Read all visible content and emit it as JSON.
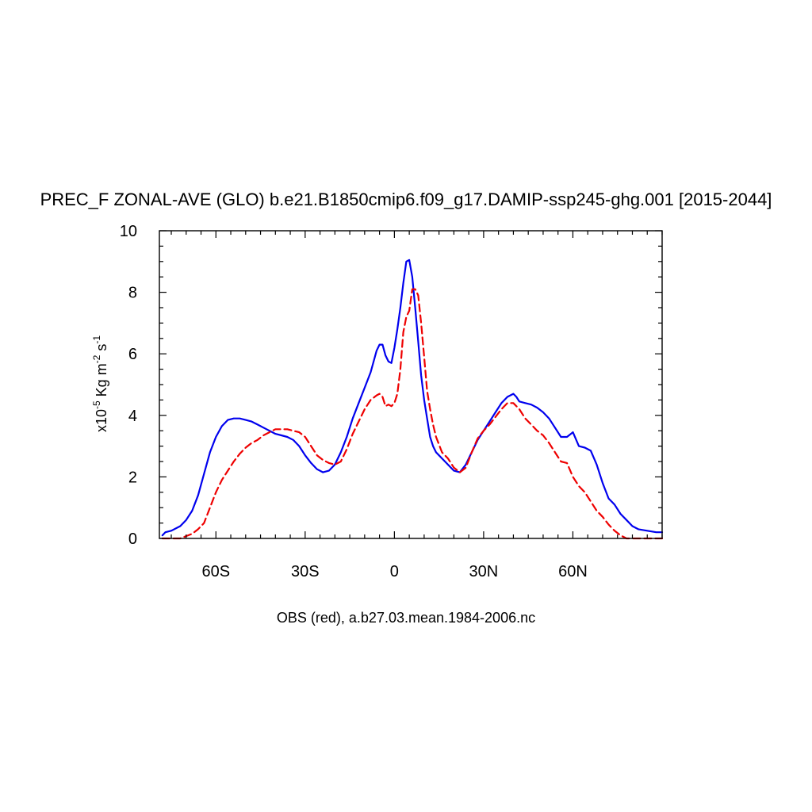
{
  "chart_data": {
    "type": "line",
    "title": "PREC_F ZONAL-AVE (GLO) b.e21.B1850cmip6.f09_g17.DAMIP-ssp245-ghg.001 [2015-2044]",
    "xlabel": "OBS (red), a.b27.03.mean.1984-2006.nc",
    "ylabel": {
      "prefix": "x10",
      "exp1": "-5",
      "unit1": " Kg m",
      "exp2": "-2",
      "unit2": " s",
      "exp3": "-1"
    },
    "xlim": [
      -79,
      90
    ],
    "ylim": [
      0,
      10
    ],
    "x_ticks": [
      {
        "value": -60,
        "label": "60S"
      },
      {
        "value": -30,
        "label": "30S"
      },
      {
        "value": 0,
        "label": "0"
      },
      {
        "value": 30,
        "label": "30N"
      },
      {
        "value": 60,
        "label": "60N"
      }
    ],
    "y_ticks": [
      {
        "value": 0,
        "label": "0"
      },
      {
        "value": 2,
        "label": "2"
      },
      {
        "value": 4,
        "label": "4"
      },
      {
        "value": 6,
        "label": "6"
      },
      {
        "value": 8,
        "label": "8"
      },
      {
        "value": 10,
        "label": "10"
      }
    ],
    "grid": false,
    "series": [
      {
        "color": "#0000ee",
        "dash": "solid",
        "x": [
          -78,
          -77,
          -75,
          -72,
          -70,
          -68,
          -66,
          -64,
          -62,
          -60,
          -58,
          -56,
          -54,
          -52,
          -50,
          -48,
          -46,
          -44,
          -42,
          -40,
          -38,
          -36,
          -34,
          -32,
          -30,
          -28,
          -26,
          -24,
          -22,
          -20,
          -18,
          -16,
          -14,
          -12,
          -10,
          -8,
          -6,
          -5,
          -4,
          -3,
          -2,
          -1,
          0,
          1,
          2,
          3,
          4,
          5,
          6,
          7,
          8,
          9,
          10,
          11,
          12,
          13,
          14,
          15,
          16,
          18,
          20,
          22,
          24,
          26,
          28,
          30,
          32,
          34,
          36,
          38,
          40,
          41,
          42,
          44,
          46,
          48,
          50,
          52,
          54,
          56,
          58,
          60,
          62,
          64,
          66,
          68,
          70,
          72,
          74,
          76,
          78,
          80,
          82,
          85,
          88,
          90
        ],
        "y": [
          0.1,
          0.2,
          0.25,
          0.4,
          0.6,
          0.9,
          1.4,
          2.1,
          2.8,
          3.3,
          3.65,
          3.85,
          3.9,
          3.9,
          3.85,
          3.8,
          3.7,
          3.6,
          3.5,
          3.4,
          3.35,
          3.3,
          3.2,
          3.0,
          2.7,
          2.45,
          2.25,
          2.15,
          2.2,
          2.4,
          2.8,
          3.3,
          3.9,
          4.4,
          4.9,
          5.4,
          6.1,
          6.3,
          6.3,
          5.95,
          5.75,
          5.7,
          6.2,
          6.8,
          7.5,
          8.3,
          9.0,
          9.05,
          8.5,
          7.5,
          6.4,
          5.3,
          4.5,
          3.9,
          3.3,
          3.0,
          2.8,
          2.7,
          2.6,
          2.4,
          2.2,
          2.15,
          2.4,
          2.8,
          3.2,
          3.5,
          3.8,
          4.1,
          4.4,
          4.6,
          4.7,
          4.6,
          4.45,
          4.4,
          4.35,
          4.25,
          4.1,
          3.9,
          3.6,
          3.3,
          3.3,
          3.45,
          3.0,
          2.95,
          2.85,
          2.4,
          1.8,
          1.3,
          1.1,
          0.8,
          0.6,
          0.4,
          0.3,
          0.25,
          0.2,
          0.2
        ]
      },
      {
        "color": "#ee0000",
        "dash": "dashed",
        "x": [
          -78,
          -72,
          -68,
          -66,
          -64,
          -62,
          -60,
          -58,
          -56,
          -54,
          -52,
          -50,
          -48,
          -46,
          -44,
          -42,
          -40,
          -38,
          -36,
          -34,
          -32,
          -30,
          -28,
          -26,
          -24,
          -22,
          -20,
          -18,
          -16,
          -14,
          -12,
          -10,
          -8,
          -6,
          -5,
          -4,
          -3,
          -2,
          -1,
          0,
          1,
          2,
          3,
          4,
          5,
          6,
          7,
          8,
          9,
          10,
          11,
          12,
          13,
          14,
          16,
          18,
          20,
          22,
          24,
          26,
          28,
          30,
          32,
          34,
          36,
          38,
          40,
          42,
          44,
          46,
          48,
          50,
          52,
          54,
          56,
          58,
          60,
          62,
          64,
          66,
          68,
          70,
          72,
          74,
          76,
          78,
          80,
          82,
          85,
          88,
          90
        ],
        "y": [
          0.0,
          0.0,
          0.15,
          0.3,
          0.5,
          1.0,
          1.5,
          1.9,
          2.2,
          2.5,
          2.75,
          2.95,
          3.1,
          3.2,
          3.35,
          3.45,
          3.55,
          3.55,
          3.55,
          3.5,
          3.45,
          3.3,
          3.0,
          2.7,
          2.55,
          2.45,
          2.4,
          2.5,
          2.9,
          3.4,
          3.8,
          4.2,
          4.5,
          4.65,
          4.7,
          4.6,
          4.3,
          4.35,
          4.3,
          4.4,
          4.7,
          5.5,
          6.7,
          7.2,
          7.4,
          8.1,
          8.1,
          7.9,
          7.0,
          5.9,
          4.8,
          4.2,
          3.7,
          3.3,
          2.8,
          2.6,
          2.3,
          2.15,
          2.3,
          2.8,
          3.25,
          3.5,
          3.7,
          3.95,
          4.2,
          4.4,
          4.4,
          4.2,
          3.9,
          3.7,
          3.5,
          3.35,
          3.1,
          2.8,
          2.5,
          2.45,
          2.0,
          1.7,
          1.5,
          1.2,
          0.9,
          0.7,
          0.45,
          0.25,
          0.1,
          0.0,
          0.0,
          0.0,
          0.0,
          0.0,
          0.0
        ]
      }
    ]
  }
}
